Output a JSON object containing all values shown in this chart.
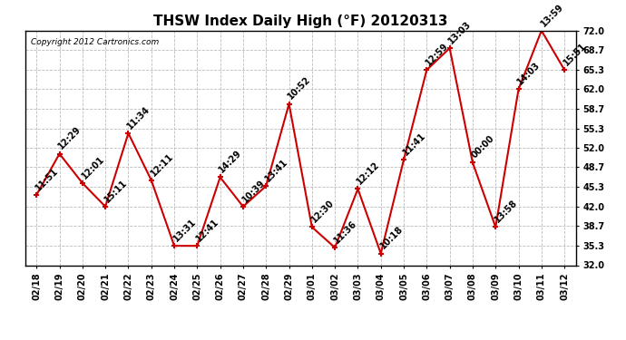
{
  "title": "THSW Index Daily High (°F) 20120313",
  "copyright": "Copyright 2012 Cartronics.com",
  "x_labels": [
    "02/18",
    "02/19",
    "02/20",
    "02/21",
    "02/22",
    "02/23",
    "02/24",
    "02/25",
    "02/26",
    "02/27",
    "02/28",
    "02/29",
    "03/01",
    "03/02",
    "03/03",
    "03/04",
    "03/05",
    "03/06",
    "03/07",
    "03/08",
    "03/09",
    "03/10",
    "03/11",
    "03/12"
  ],
  "y_values": [
    44.0,
    51.0,
    46.0,
    42.0,
    54.5,
    46.5,
    35.3,
    35.3,
    47.0,
    42.0,
    45.5,
    59.5,
    38.5,
    35.0,
    45.0,
    34.0,
    50.0,
    65.3,
    69.0,
    49.5,
    38.5,
    62.0,
    72.0,
    65.3
  ],
  "time_labels": [
    "11:51",
    "12:29",
    "12:01",
    "15:11",
    "11:34",
    "12:11",
    "13:31",
    "12:41",
    "14:29",
    "10:39",
    "13:41",
    "10:52",
    "12:30",
    "11:36",
    "12:12",
    "10:18",
    "11:41",
    "12:59",
    "13:03",
    "00:00",
    "13:58",
    "14:03",
    "13:59",
    "15:51"
  ],
  "y_min": 32.0,
  "y_max": 72.0,
  "y_ticks": [
    32.0,
    35.3,
    38.7,
    42.0,
    45.3,
    48.7,
    52.0,
    55.3,
    58.7,
    62.0,
    65.3,
    68.7,
    72.0
  ],
  "line_color": "#cc0000",
  "marker_color": "#cc0000",
  "bg_color": "#ffffff",
  "plot_bg_color": "#ffffff",
  "grid_color": "#bbbbbb",
  "title_fontsize": 11,
  "label_fontsize": 7,
  "tick_fontsize": 7,
  "copyright_fontsize": 6.5
}
